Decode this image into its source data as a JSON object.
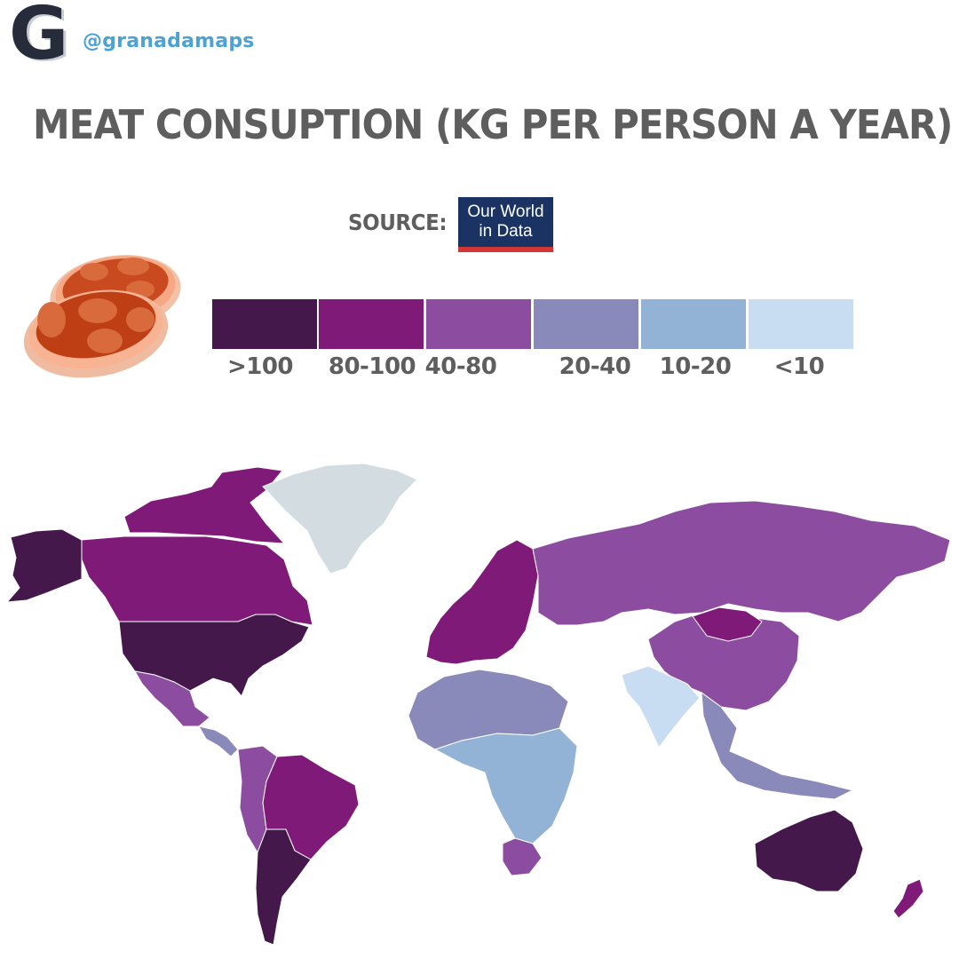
{
  "header": {
    "logo_letter": "G",
    "handle": "@granadamaps"
  },
  "title": "MEAT CONSUPTION (KG PER PERSON A YEAR)",
  "source": {
    "label": "SOURCE:",
    "logo_line1": "Our World",
    "logo_line2": "in Data"
  },
  "legend": [
    {
      "label": ">100",
      "color": "#44184b"
    },
    {
      "label": "80-100",
      "color": "#801a78"
    },
    {
      "label": "40-80",
      "color": "#8c4da0"
    },
    {
      "label": "20-40",
      "color": "#8989ba"
    },
    {
      "label": "10-20",
      "color": "#93b3d6"
    },
    {
      "label": "<10",
      "color": "#c8ddf1"
    }
  ],
  "map": {
    "no_data_color": "#d3dde1",
    "regions": [
      {
        "name": "Alaska",
        "category": ">100"
      },
      {
        "name": "Canada",
        "category": "80-100"
      },
      {
        "name": "United States",
        "category": ">100"
      },
      {
        "name": "Mexico",
        "category": "40-80"
      },
      {
        "name": "Central America",
        "category": "20-40"
      },
      {
        "name": "Brazil",
        "category": "80-100"
      },
      {
        "name": "Argentina",
        "category": ">100"
      },
      {
        "name": "Andean South America",
        "category": "40-80"
      },
      {
        "name": "Greenland",
        "category": "no data"
      },
      {
        "name": "Western Europe",
        "category": "80-100"
      },
      {
        "name": "Russia",
        "category": "40-80"
      },
      {
        "name": "China",
        "category": "40-80"
      },
      {
        "name": "Mongolia",
        "category": "80-100"
      },
      {
        "name": "India",
        "category": "<10"
      },
      {
        "name": "North Africa",
        "category": "20-40"
      },
      {
        "name": "Sub-Saharan Africa",
        "category": "10-20"
      },
      {
        "name": "South Africa",
        "category": "40-80"
      },
      {
        "name": "Southeast Asia",
        "category": "20-40"
      },
      {
        "name": "Australia",
        "category": ">100"
      },
      {
        "name": "New Zealand",
        "category": "80-100"
      }
    ]
  }
}
